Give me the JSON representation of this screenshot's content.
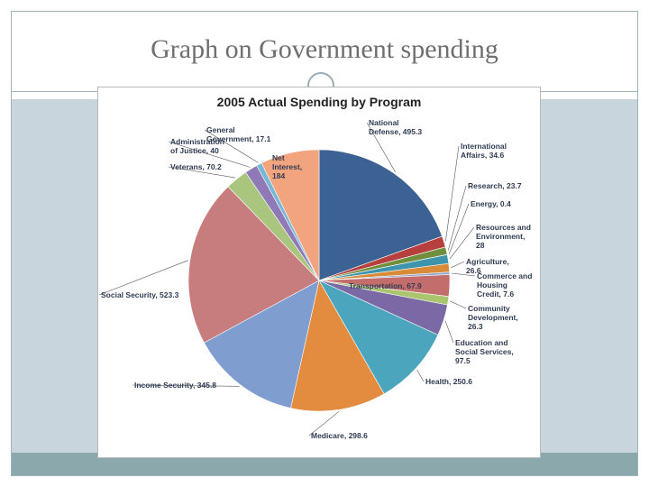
{
  "slide": {
    "title": "Graph on Government spending"
  },
  "chart_data": {
    "type": "pie",
    "title": "2005 Actual Spending by Program",
    "categories": [
      "National Defense",
      "International Affairs",
      "Research",
      "Energy",
      "Resources and Environment",
      "Agriculture",
      "Commerce and Housing Credit",
      "Transportation",
      "Community Development",
      "Education and Social Services",
      "Health",
      "Medicare",
      "Income Security",
      "Social Security",
      "Veterans",
      "Administration of Justice",
      "General Government",
      "Net Interest"
    ],
    "values": [
      495.3,
      34.6,
      23.7,
      0.4,
      28,
      26.6,
      7.6,
      67.9,
      26.3,
      97.5,
      250.6,
      298.6,
      345.8,
      523.3,
      70.2,
      40,
      17.1,
      184
    ],
    "labels": [
      "National Defense, 495.3",
      "International Affairs, 34.6",
      "Research, 23.7",
      "Energy, 0.4",
      "Resources and Environment, 28",
      "Agriculture, 26.6",
      "Commerce and Housing Credit, 7.6",
      "Transportation, 67.9",
      "Community Development, 26.3",
      "Education and Social Services, 97.5",
      "Health, 250.6",
      "Medicare, 298.6",
      "Income Security, 345.8",
      "Social Security, 523.3",
      "Veterans, 70.2",
      "Administration of Justice, 40",
      "General Government, 17.1",
      "Net Interest, 184"
    ],
    "colors": [
      "#3c6293",
      "#b5403e",
      "#6f8f3d",
      "#5d4a86",
      "#3d95ad",
      "#d98b3a",
      "#8aa6cf",
      "#c46d6d",
      "#a9c56e",
      "#7b69a6",
      "#4aa5bd",
      "#e38b3f",
      "#7f9dce",
      "#c77d7d",
      "#a9c57e",
      "#8f7ab7",
      "#79b7d3",
      "#f2a47e"
    ]
  }
}
